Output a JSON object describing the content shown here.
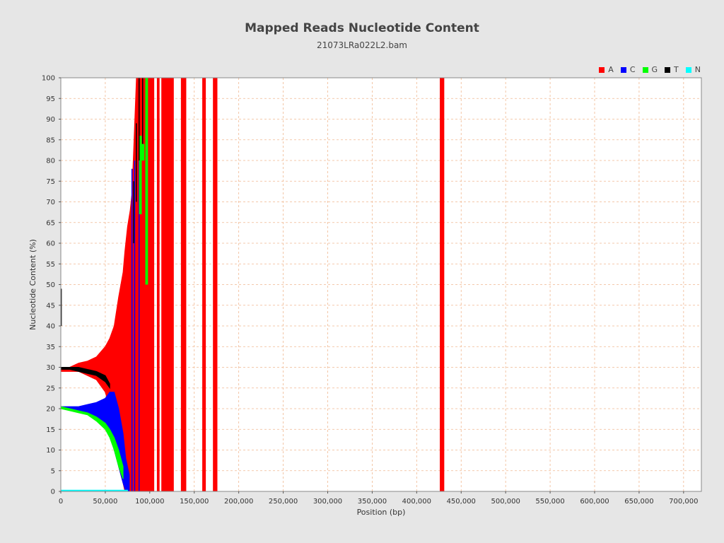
{
  "chart_data": {
    "type": "bar",
    "title": "Mapped Reads Nucleotide Content",
    "subtitle": "21073LRa022L2.bam",
    "xlabel": "Position (bp)",
    "ylabel": "Nucleotide Content (%)",
    "xlim": [
      0,
      720000
    ],
    "ylim": [
      0,
      100
    ],
    "grid": true,
    "legend_position": "top-right",
    "xticks": [
      0,
      50000,
      100000,
      150000,
      200000,
      250000,
      300000,
      350000,
      400000,
      450000,
      500000,
      550000,
      600000,
      650000,
      700000
    ],
    "xtick_labels": [
      "0",
      "50,000",
      "100,000",
      "150,000",
      "200,000",
      "250,000",
      "300,000",
      "350,000",
      "400,000",
      "450,000",
      "500,000",
      "550,000",
      "600,000",
      "650,000",
      "700,000"
    ],
    "yticks": [
      0,
      5,
      10,
      15,
      20,
      25,
      30,
      35,
      40,
      45,
      50,
      55,
      60,
      65,
      70,
      75,
      80,
      85,
      90,
      95,
      100
    ],
    "ytick_labels": [
      "0",
      "5",
      "10",
      "15",
      "20",
      "25",
      "30",
      "35",
      "40",
      "45",
      "50",
      "55",
      "60",
      "65",
      "70",
      "75",
      "80",
      "85",
      "90",
      "95",
      "100"
    ],
    "series": [
      {
        "name": "A",
        "color": "#ff0000",
        "envelope": {
          "x": [
            0,
            10000,
            20000,
            30000,
            40000,
            50000,
            55000,
            60000,
            65000,
            70000,
            72000,
            75000,
            78000,
            80000,
            85000
          ],
          "upper": [
            30,
            30,
            31,
            31.5,
            32.5,
            35,
            37,
            40,
            47,
            53,
            58,
            64,
            68,
            72,
            100
          ],
          "lower": [
            29,
            29,
            29,
            28,
            27,
            24,
            20,
            14,
            6,
            2,
            0,
            0,
            0,
            0,
            0
          ]
        },
        "full_bands": [
          [
            85000,
            105000
          ],
          [
            108000,
            111000
          ],
          [
            113000,
            127000
          ],
          [
            135000,
            141000
          ],
          [
            159000,
            163000
          ],
          [
            171000,
            176000
          ],
          [
            426000,
            431000
          ]
        ]
      },
      {
        "name": "C",
        "color": "#0000ff",
        "envelope": {
          "x": [
            0,
            10000,
            20000,
            30000,
            40000,
            50000,
            55000,
            60000,
            65000,
            70000,
            73000,
            77000
          ],
          "upper": [
            20.5,
            20.5,
            20.5,
            21,
            21.5,
            22.5,
            24,
            24,
            20,
            14,
            8,
            4
          ],
          "lower": [
            20,
            20,
            19.5,
            19,
            18,
            16,
            14,
            10,
            6,
            2,
            0,
            0
          ]
        },
        "spikes": [
          [
            80000,
            0,
            78
          ],
          [
            83000,
            0,
            80
          ],
          [
            88000,
            0,
            87
          ]
        ]
      },
      {
        "name": "G",
        "color": "#00ff00",
        "envelope": {
          "x": [
            0,
            10000,
            20000,
            30000,
            40000,
            50000,
            55000,
            60000,
            65000,
            70000
          ],
          "upper": [
            20.5,
            20,
            19.5,
            19,
            18,
            16.5,
            15,
            13,
            10,
            6
          ],
          "lower": [
            20,
            19.5,
            19,
            18.5,
            17,
            15,
            13,
            10,
            6,
            3
          ]
        },
        "bars": [
          [
            88000,
            91000,
            67,
            86
          ],
          [
            91000,
            94000,
            80,
            84
          ],
          [
            95000,
            98000,
            50,
            100
          ]
        ]
      },
      {
        "name": "T",
        "color": "#000000",
        "envelope": {
          "x": [
            0,
            10000,
            20000,
            30000,
            40000,
            50000,
            55000
          ],
          "upper": [
            30,
            30,
            30,
            29.5,
            29,
            28,
            26
          ],
          "lower": [
            29.5,
            29.5,
            29,
            28.5,
            28,
            26.5,
            25
          ]
        },
        "spikes": [
          [
            500,
            40,
            49
          ],
          [
            82000,
            60,
            75
          ],
          [
            85000,
            70,
            89
          ],
          [
            88000,
            80,
            100
          ],
          [
            92000,
            84,
            100
          ]
        ]
      },
      {
        "name": "N",
        "color": "#00ffff",
        "envelope": {
          "x": [
            0,
            75000
          ],
          "upper": [
            0.3,
            0.3
          ],
          "lower": [
            0,
            0
          ]
        }
      }
    ]
  }
}
